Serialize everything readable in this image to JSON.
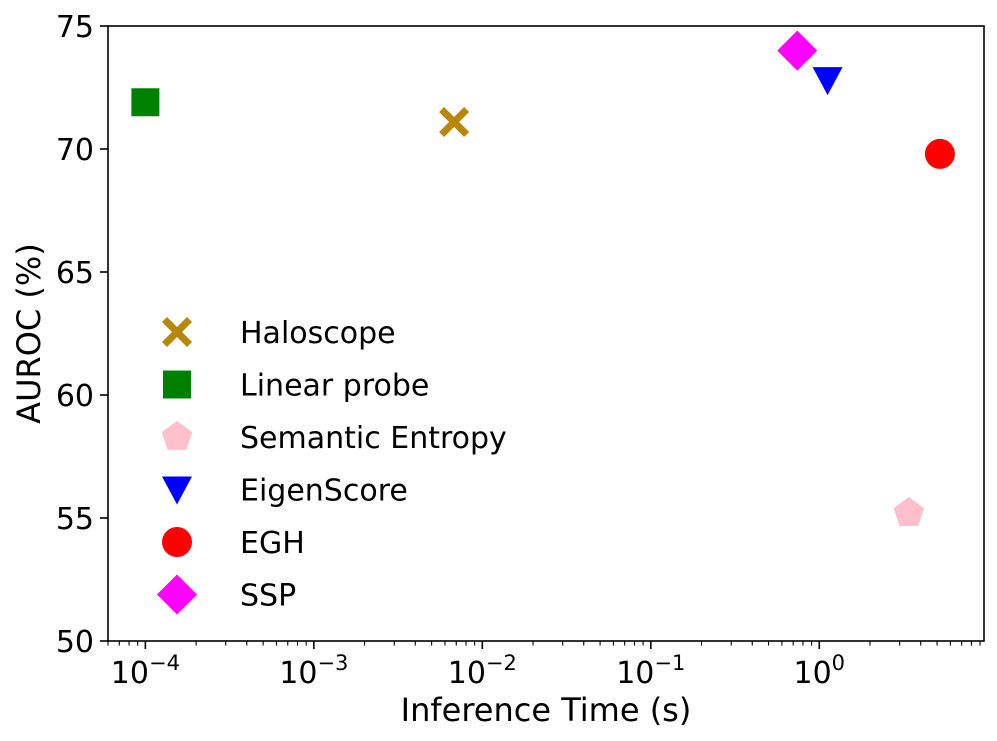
{
  "chart_data": {
    "type": "scatter",
    "xscale": "log",
    "xlabel": "Inference Time (s)",
    "ylabel": "AUROC (%)",
    "xlim": [
      6e-05,
      9.5
    ],
    "ylim": [
      50,
      75
    ],
    "grid": false,
    "legend_position": "center-left",
    "x_tick_values": [
      0.0001,
      0.001,
      0.01,
      0.1,
      1
    ],
    "x_tick_labels": [
      {
        "base": "10",
        "exp": "−4"
      },
      {
        "base": "10",
        "exp": "−3"
      },
      {
        "base": "10",
        "exp": "−2"
      },
      {
        "base": "10",
        "exp": "−1"
      },
      {
        "base": "10",
        "exp": "0"
      }
    ],
    "y_ticks": [
      50,
      55,
      60,
      65,
      70,
      75
    ],
    "y_tick_labels": [
      "50",
      "55",
      "60",
      "65",
      "70",
      "75"
    ],
    "series": [
      {
        "name": "Haloscope",
        "marker": "x-thick",
        "color": "#b8860b",
        "points": [
          {
            "x": 0.0068,
            "y": 71.1
          }
        ]
      },
      {
        "name": "Linear probe",
        "marker": "square",
        "color": "#008000",
        "points": [
          {
            "x": 0.0001,
            "y": 71.9
          }
        ]
      },
      {
        "name": "Semantic Entropy",
        "marker": "pentagon",
        "color": "#ffc0cb",
        "points": [
          {
            "x": 3.4,
            "y": 55.2
          }
        ]
      },
      {
        "name": "EigenScore",
        "marker": "triangle-down",
        "color": "#0000ff",
        "points": [
          {
            "x": 1.12,
            "y": 72.8
          }
        ]
      },
      {
        "name": "EGH",
        "marker": "circle",
        "color": "#ff0000",
        "points": [
          {
            "x": 5.2,
            "y": 69.8
          }
        ]
      },
      {
        "name": "SSP",
        "marker": "diamond",
        "color": "#ff00ff",
        "points": [
          {
            "x": 0.74,
            "y": 74.0
          }
        ]
      }
    ]
  }
}
